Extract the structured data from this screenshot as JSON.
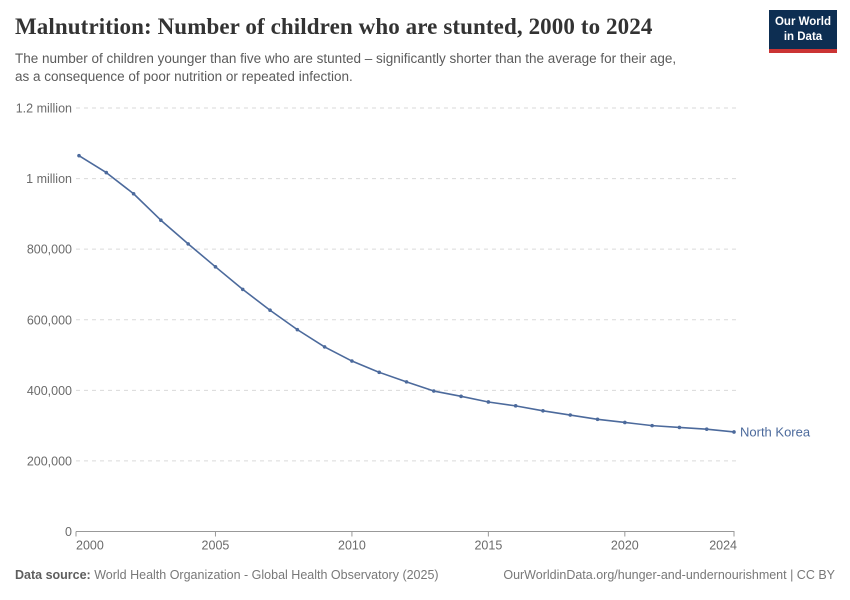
{
  "header": {
    "title": "Malnutrition: Number of children who are stunted, 2000 to 2024",
    "subtitle_line1": "The number of children younger than five who are stunted – significantly shorter than the average for their age,",
    "subtitle_line2": "as a consequence of poor nutrition or repeated infection."
  },
  "logo": {
    "line1": "Our World",
    "line2": "in Data",
    "bg_color": "#0d2e52",
    "stripe_color": "#cb3434"
  },
  "chart_data": {
    "type": "line",
    "title": "Malnutrition: Number of children who are stunted, 2000 to 2024",
    "xlabel": "",
    "ylabel": "",
    "xlim": [
      2000,
      2024
    ],
    "ylim": [
      0,
      1200000
    ],
    "grid": true,
    "grid_style": "dashed",
    "legend_position": "end-of-line",
    "line_color": "#4C6A9C",
    "x": [
      2000,
      2001,
      2002,
      2003,
      2004,
      2005,
      2006,
      2007,
      2008,
      2009,
      2010,
      2011,
      2012,
      2013,
      2014,
      2015,
      2016,
      2017,
      2018,
      2019,
      2020,
      2021,
      2022,
      2023,
      2024
    ],
    "series": [
      {
        "name": "North Korea",
        "values": [
          1065000,
          1017000,
          957000,
          882000,
          815000,
          750000,
          686000,
          627000,
          572000,
          523000,
          483000,
          451000,
          424000,
          398000,
          383000,
          367000,
          356000,
          342000,
          330000,
          318000,
          309000,
          300000,
          295000,
          290000,
          282000
        ]
      }
    ],
    "x_ticks": [
      2000,
      2005,
      2010,
      2015,
      2020,
      2024
    ],
    "y_ticks": [
      {
        "value": 0,
        "label": "0"
      },
      {
        "value": 200000,
        "label": "200,000"
      },
      {
        "value": 400000,
        "label": "400,000"
      },
      {
        "value": 600000,
        "label": "600,000"
      },
      {
        "value": 800000,
        "label": "800,000"
      },
      {
        "value": 1000000,
        "label": "1 million"
      },
      {
        "value": 1200000,
        "label": "1.2 million"
      }
    ]
  },
  "footer": {
    "source_label": "Data source:",
    "source_text": " World Health Organization - Global Health Observatory (2025)",
    "right_text": "OurWorldinData.org/hunger-and-undernourishment | CC BY"
  }
}
